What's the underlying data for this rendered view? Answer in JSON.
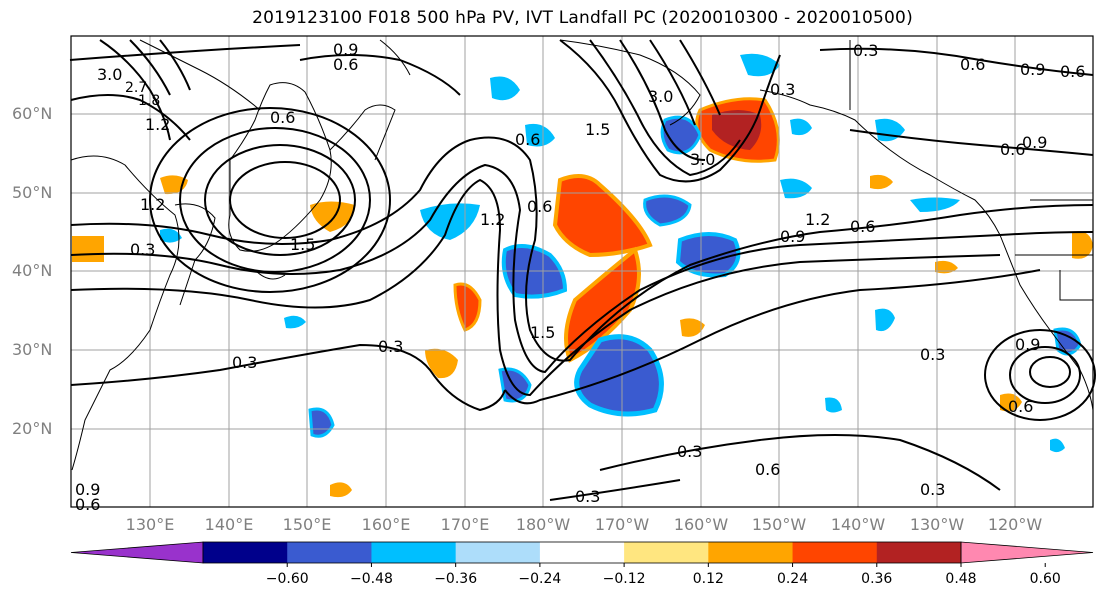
{
  "title": "2019123100 F018 500 hPa PV, IVT Landfall PC (2020010300 - 2020010500)",
  "lat_labels": [
    "60°N",
    "50°N",
    "40°N",
    "30°N",
    "20°N"
  ],
  "lon_labels": [
    "130°E",
    "140°E",
    "150°E",
    "160°E",
    "170°E",
    "180°W",
    "170°W",
    "160°W",
    "150°W",
    "140°W",
    "130°W",
    "120°W"
  ],
  "colorbar": {
    "colors": [
      "#9932CC",
      "#00008B",
      "#3A5BD0",
      "#00BFFF",
      "#ADDDFA",
      "#FFFFFF",
      "#FFE680",
      "#FFA500",
      "#FF4500",
      "#B22222",
      "#FF88B0"
    ],
    "ticks": [
      "−0.60",
      "−0.48",
      "−0.36",
      "−0.24",
      "−0.12",
      "0.12",
      "0.24",
      "0.36",
      "0.48",
      "0.60"
    ]
  },
  "contour_labels": [
    "3.0",
    "2.7",
    "1.8",
    "1.2",
    "0.6",
    "0.9",
    "0.6",
    "0.3",
    "0.6",
    "1.5",
    "1.2",
    "0.6",
    "3.0",
    "0.9",
    "1.2",
    "0.6",
    "0.9",
    "0.6",
    "0.3",
    "0.3",
    "1.5",
    "0.3",
    "0.6",
    "0.3",
    "0.3",
    "0.9",
    "0.6",
    "0.3",
    "1.5",
    "1.2",
    "0.3",
    "0.6",
    "3.0",
    "0.3",
    "0.9",
    "0.6",
    "0.9",
    "0.6"
  ],
  "colors": {
    "contour": "#000000",
    "grid": "#a0a0a0",
    "axis_label": "#808080"
  }
}
